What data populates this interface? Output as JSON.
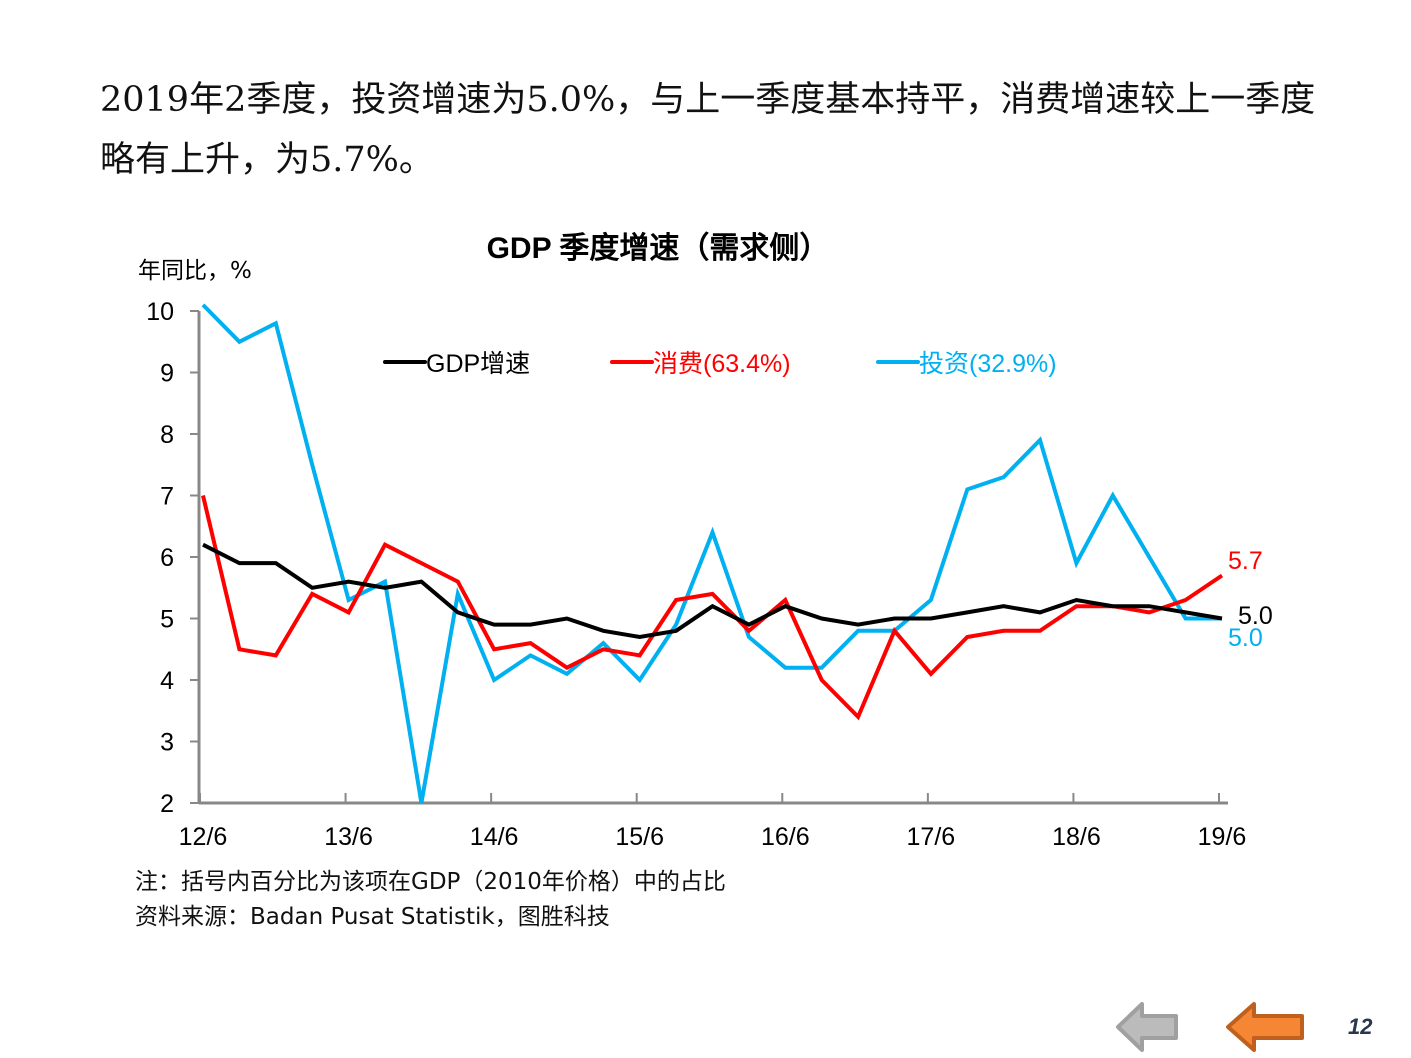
{
  "headline": "2019年2季度，投资增速为5.0%，与上一季度基本持平，消费增速较上一季度略有上升，为5.7%。",
  "chart_data": {
    "type": "line",
    "title": "GDP 季度增速（需求侧）",
    "ylabel": "年同比，%",
    "xlabel": "",
    "ylim": [
      2,
      10
    ],
    "yticks": [
      "2",
      "3",
      "4",
      "5",
      "6",
      "7",
      "8",
      "9",
      "10"
    ],
    "xtick_labels": [
      "12/6",
      "13/6",
      "14/6",
      "15/6",
      "16/6",
      "17/6",
      "18/6",
      "19/6"
    ],
    "x": [
      "12/6",
      "12/9",
      "12/12",
      "13/3",
      "13/6",
      "13/9",
      "13/12",
      "14/3",
      "14/6",
      "14/9",
      "14/12",
      "15/3",
      "15/6",
      "15/9",
      "15/12",
      "16/3",
      "16/6",
      "16/9",
      "16/12",
      "17/3",
      "17/6",
      "17/9",
      "17/12",
      "18/3",
      "18/6",
      "18/9",
      "18/12",
      "19/3",
      "19/6"
    ],
    "legend_position": "top",
    "grid": false,
    "series": [
      {
        "name": "GDP增速",
        "color": "#000000",
        "values": [
          6.2,
          5.9,
          5.9,
          5.5,
          5.6,
          5.5,
          5.6,
          5.1,
          4.9,
          4.9,
          5.0,
          4.8,
          4.7,
          4.8,
          5.2,
          4.9,
          5.2,
          5.0,
          4.9,
          5.0,
          5.0,
          5.1,
          5.2,
          5.1,
          5.3,
          5.2,
          5.2,
          5.1,
          5.0
        ],
        "end_label": "5.0"
      },
      {
        "name": "消费(63.4%)",
        "color": "#ff0000",
        "values": [
          7.0,
          4.5,
          4.4,
          5.4,
          5.1,
          6.2,
          5.9,
          5.6,
          4.5,
          4.6,
          4.2,
          4.5,
          4.4,
          5.3,
          5.4,
          4.8,
          5.3,
          4.0,
          3.4,
          4.8,
          4.1,
          4.7,
          4.8,
          4.8,
          5.2,
          5.2,
          5.1,
          5.3,
          5.7
        ],
        "end_label": "5.7"
      },
      {
        "name": "投资(32.9%)",
        "color": "#00b0f0",
        "values": [
          10.1,
          9.5,
          9.8,
          7.5,
          5.3,
          5.6,
          2.0,
          5.4,
          4.0,
          4.4,
          4.1,
          4.6,
          4.0,
          4.9,
          6.4,
          4.7,
          4.2,
          4.2,
          4.8,
          4.8,
          5.3,
          7.1,
          7.3,
          7.9,
          5.9,
          7.0,
          6.0,
          5.0,
          5.0
        ],
        "end_label": "5.0"
      }
    ]
  },
  "notes": {
    "note1": "注：括号内百分比为该项在GDP（2010年价格）中的占比",
    "source": "资料来源：Badan Pusat Statistik，图胜科技"
  },
  "page_number": "12",
  "nav": {
    "back_color": "#b8b8b8",
    "return_color": "#f58634"
  }
}
